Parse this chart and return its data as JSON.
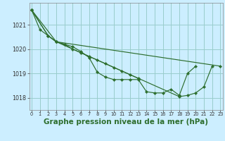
{
  "background_color": "#cceeff",
  "grid_color": "#99cccc",
  "line_color": "#2d6e2d",
  "marker_color": "#2d6e2d",
  "xlabel": "Graphe pression niveau de la mer (hPa)",
  "xlabel_fontsize": 7.5,
  "ylim": [
    1017.5,
    1021.9
  ],
  "xlim": [
    -0.3,
    23.3
  ],
  "yticks": [
    1018,
    1019,
    1020,
    1021
  ],
  "xtick_labels": [
    "0",
    "1",
    "2",
    "3",
    "4",
    "5",
    "6",
    "7",
    "8",
    "9",
    "10",
    "11",
    "12",
    "13",
    "14",
    "15",
    "16",
    "17",
    "18",
    "19",
    "20",
    "21",
    "22",
    "23"
  ],
  "xticks": [
    0,
    1,
    2,
    3,
    4,
    5,
    6,
    7,
    8,
    9,
    10,
    11,
    12,
    13,
    14,
    15,
    16,
    17,
    18,
    19,
    20,
    21,
    22,
    23
  ],
  "series": [
    {
      "x": [
        0,
        1,
        2,
        3,
        4,
        5,
        6,
        7,
        8,
        9,
        10,
        11,
        12,
        13,
        14,
        15,
        16,
        17,
        18,
        19,
        20
      ],
      "y": [
        1021.6,
        1020.8,
        1020.55,
        1020.3,
        1020.2,
        1020.1,
        1019.9,
        1019.65,
        1019.05,
        1018.85,
        1018.75,
        1018.75,
        1018.75,
        1018.75,
        1018.25,
        1018.2,
        1018.2,
        1018.35,
        1018.1,
        1019.0,
        1019.3
      ]
    },
    {
      "x": [
        0,
        2,
        3,
        4,
        5,
        6,
        7,
        8,
        9,
        10,
        11,
        12,
        13
      ],
      "y": [
        1021.6,
        1020.55,
        1020.3,
        1020.2,
        1020.0,
        1019.85,
        1019.7,
        1019.55,
        1019.4,
        1019.25,
        1019.1,
        1018.95,
        1018.8
      ]
    },
    {
      "x": [
        0,
        2,
        3,
        18,
        19,
        20,
        21,
        22
      ],
      "y": [
        1021.6,
        1020.55,
        1020.3,
        1018.05,
        1018.1,
        1018.2,
        1018.45,
        1019.3
      ]
    },
    {
      "x": [
        0,
        3,
        23
      ],
      "y": [
        1021.6,
        1020.3,
        1019.3
      ]
    }
  ]
}
